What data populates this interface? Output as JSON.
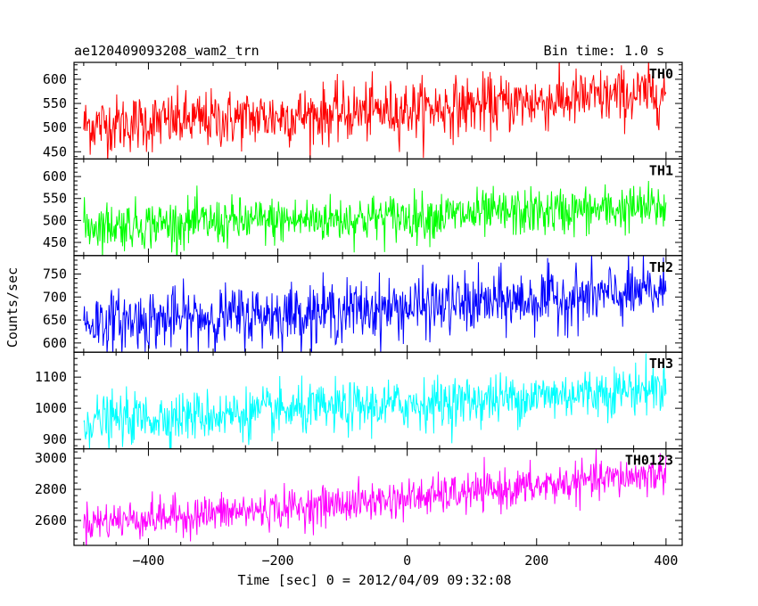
{
  "chart_data": {
    "type": "line",
    "title_left": "ae120409093208_wam2_trn",
    "title_right": "Bin time: 1.0 s",
    "xlabel": "Time [sec] 0 = 2012/04/09 09:32:08",
    "ylabel": "Counts/sec",
    "xlim": [
      -515,
      425
    ],
    "x_ticks": [
      -400,
      -200,
      0,
      200,
      400
    ],
    "x_tick_labels": [
      "−400",
      "−200",
      "0",
      "200",
      "400"
    ],
    "x_range_data": [
      -500,
      400
    ],
    "bin_time": 1.0,
    "panels": [
      {
        "name": "TH0",
        "color": "#ff0000",
        "ylim": [
          435,
          635
        ],
        "yticks": [
          450,
          500,
          550,
          600
        ],
        "start_mean": 505,
        "end_mean": 572,
        "noise_sd": 30,
        "smooth": 0.0
      },
      {
        "name": "TH1",
        "color": "#00ff00",
        "ylim": [
          420,
          640
        ],
        "yticks": [
          450,
          500,
          550,
          600
        ],
        "start_mean": 488,
        "end_mean": 530,
        "noise_sd": 27,
        "smooth": 0.0
      },
      {
        "name": "TH2",
        "color": "#0000ff",
        "ylim": [
          580,
          790
        ],
        "yticks": [
          600,
          650,
          700,
          750
        ],
        "start_mean": 645,
        "end_mean": 712,
        "noise_sd": 33,
        "smooth": 0.0
      },
      {
        "name": "TH3",
        "color": "#00ffff",
        "ylim": [
          870,
          1180
        ],
        "yticks": [
          900,
          1000,
          1100
        ],
        "start_mean": 960,
        "end_mean": 1068,
        "noise_sd": 40,
        "smooth": 0.0
      },
      {
        "name": "TH0123",
        "color": "#ff00ff",
        "ylim": [
          2440,
          3060
        ],
        "yticks": [
          2600,
          2800,
          3000
        ],
        "start_mean": 2590,
        "end_mean": 2905,
        "noise_sd": 62,
        "smooth": 0.0
      }
    ]
  }
}
